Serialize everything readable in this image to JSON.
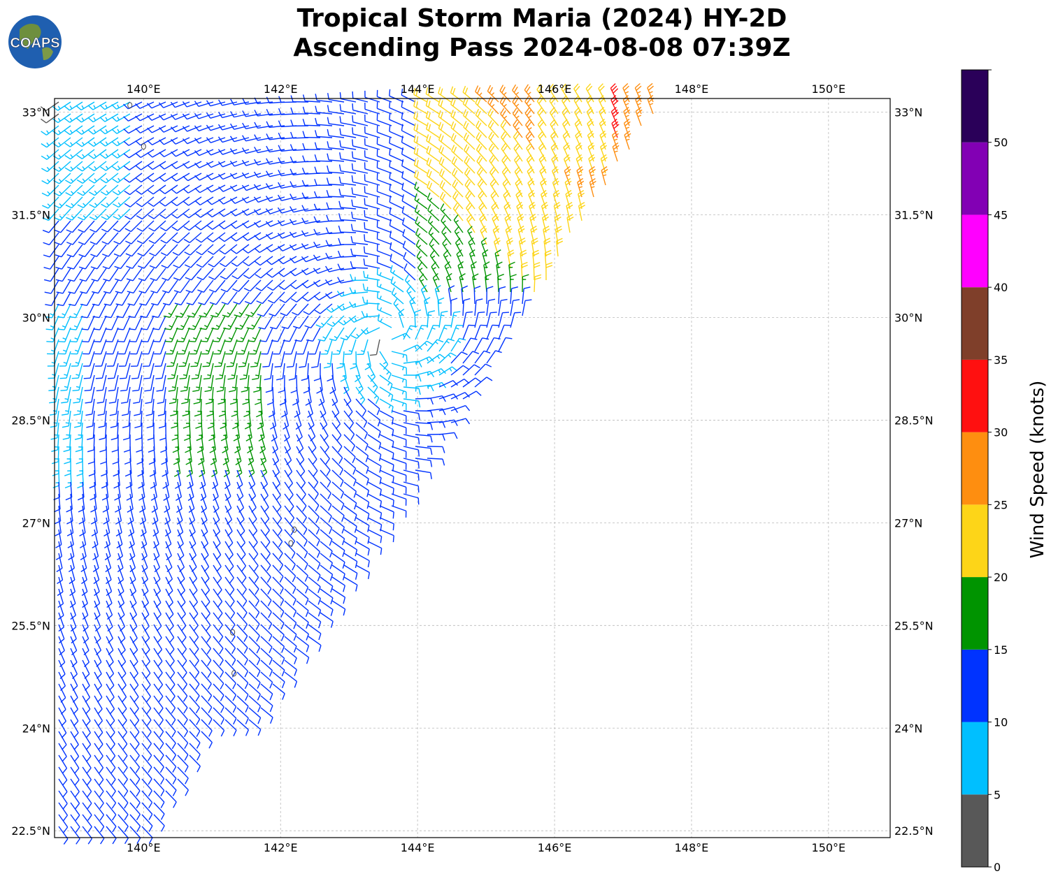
{
  "header": {
    "title_line1": "Tropical Storm Maria (2024) HY-2D",
    "title_line2": "Ascending Pass 2024-08-08 07:39Z"
  },
  "logo": {
    "text": "COAPS",
    "icon": "globe-icon"
  },
  "map": {
    "lon_ticks": [
      {
        "value": 140,
        "label": "140°E"
      },
      {
        "value": 142,
        "label": "142°E"
      },
      {
        "value": 144,
        "label": "144°E"
      },
      {
        "value": 146,
        "label": "146°E"
      },
      {
        "value": 148,
        "label": "148°E"
      },
      {
        "value": 150,
        "label": "150°E"
      }
    ],
    "lat_ticks": [
      {
        "value": 33,
        "label": "33°N"
      },
      {
        "value": 31.5,
        "label": "31.5°N"
      },
      {
        "value": 30,
        "label": "30°N"
      },
      {
        "value": 28.5,
        "label": "28.5°N"
      },
      {
        "value": 27,
        "label": "27°N"
      },
      {
        "value": 25.5,
        "label": "25.5°N"
      },
      {
        "value": 24,
        "label": "24°N"
      },
      {
        "value": 22.5,
        "label": "22.5°N"
      }
    ],
    "lon_range": [
      138.7,
      150.9
    ],
    "lat_range": [
      22.4,
      33.2
    ],
    "grid": true,
    "storm_center": {
      "lon": 143.6,
      "lat": 29.7
    },
    "islands": [
      {
        "lon": 142.2,
        "lat": 26.9
      },
      {
        "lon": 142.15,
        "lat": 26.7
      },
      {
        "lon": 141.3,
        "lat": 25.4
      },
      {
        "lon": 141.32,
        "lat": 24.8
      },
      {
        "lon": 139.8,
        "lat": 33.1
      },
      {
        "lon": 140.0,
        "lat": 32.5
      }
    ]
  },
  "colorbar": {
    "label": "Wind Speed (knots)",
    "ticks": [
      "0",
      "5",
      "10",
      "15",
      "20",
      "25",
      "30",
      "35",
      "40",
      "45",
      "50"
    ],
    "segments": [
      {
        "from": 0,
        "to": 5,
        "color": "#585858"
      },
      {
        "from": 5,
        "to": 10,
        "color": "#00bfff"
      },
      {
        "from": 10,
        "to": 15,
        "color": "#0033ff"
      },
      {
        "from": 15,
        "to": 20,
        "color": "#009400"
      },
      {
        "from": 20,
        "to": 25,
        "color": "#fdd518"
      },
      {
        "from": 25,
        "to": 30,
        "color": "#fe8e10"
      },
      {
        "from": 30,
        "to": 35,
        "color": "#ff1010"
      },
      {
        "from": 35,
        "to": 40,
        "color": "#7f3f2a"
      },
      {
        "from": 40,
        "to": 45,
        "color": "#ff00ff"
      },
      {
        "from": 45,
        "to": 50,
        "color": "#8200b4"
      },
      {
        "from": 50,
        "to": 55,
        "color": "#2a0059"
      }
    ]
  }
}
